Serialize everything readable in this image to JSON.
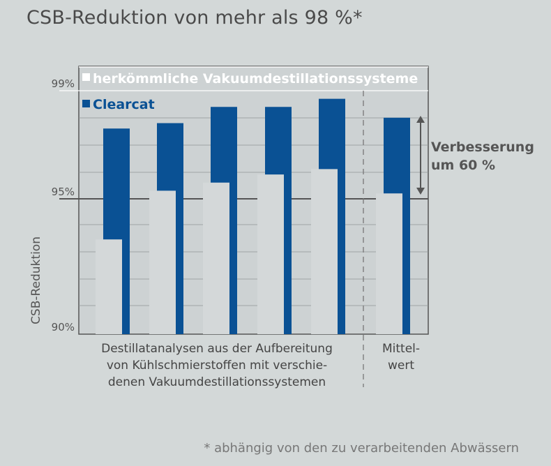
{
  "title": "CSB-Reduktion von mehr als 98 %*",
  "footnote": "* abhängig von den zu verarbeitenden Abwässern",
  "chart_data": {
    "type": "bar",
    "ylabel": "CSB-Reduktion",
    "ylim": [
      90,
      99
    ],
    "yticks": [
      {
        "value": 99,
        "label": "99%"
      },
      {
        "value": 95,
        "label": "95%"
      },
      {
        "value": 90,
        "label": "90%"
      }
    ],
    "series": [
      {
        "name": "herkömmliche Vakuumdestillationssysteme",
        "color": "#d4d8d9",
        "values": [
          93.5,
          95.3,
          95.6,
          95.9,
          96.1,
          95.2
        ]
      },
      {
        "name": "Clearcat",
        "color": "#0a5194",
        "values": [
          97.6,
          97.8,
          98.4,
          98.4,
          98.7,
          98.0
        ]
      }
    ],
    "group_labels": [
      {
        "lines": [
          "Destillatanalysen aus der Aufbereitung",
          "von Kühlschmierstoffen mit verschie-",
          "denen Vakuumdestillationssystemen"
        ]
      },
      {
        "lines": [
          "Mittel-",
          "wert"
        ]
      }
    ],
    "annotation": {
      "lines": [
        "Verbesserung",
        "um 60 %"
      ]
    }
  }
}
